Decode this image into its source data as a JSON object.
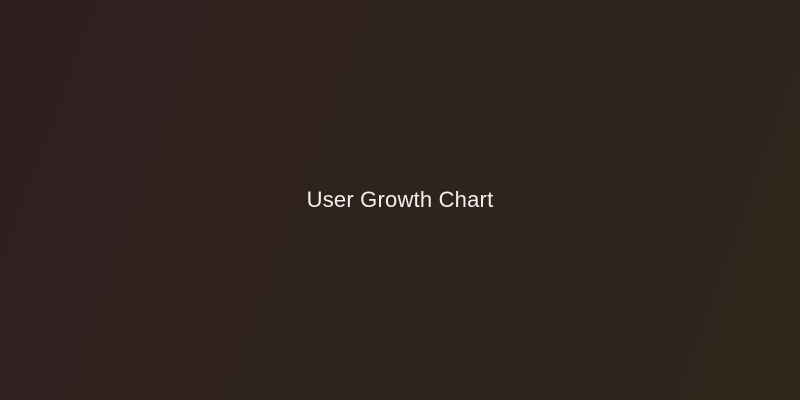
{
  "chart_placeholder": {
    "label": "User Growth Chart",
    "background_start": "#2f2020",
    "background_end": "#2f261c",
    "text_color": "#f4f1ee"
  }
}
